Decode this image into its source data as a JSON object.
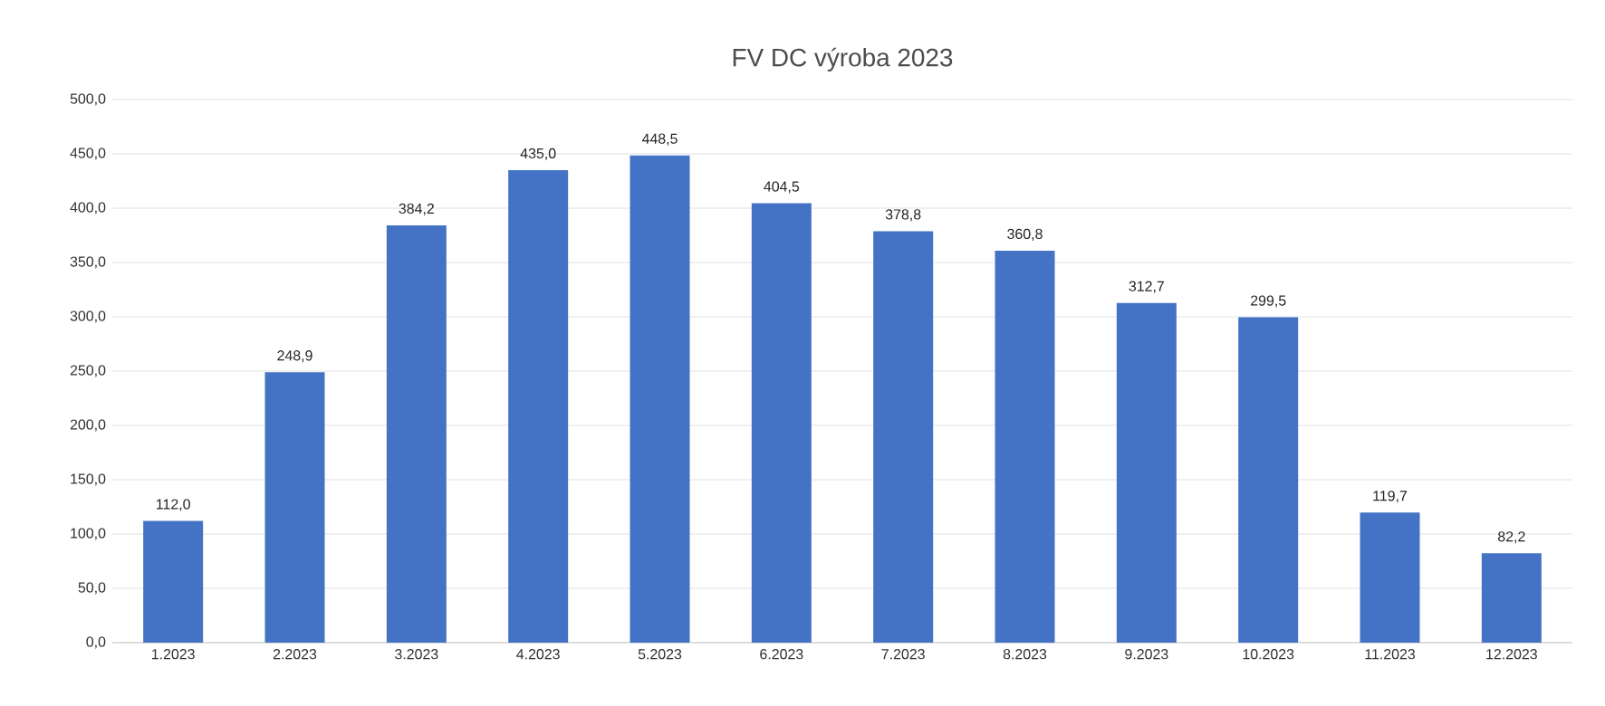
{
  "chart_data": {
    "type": "bar",
    "title": "FV DC výroba 2023",
    "categories": [
      "1.2023",
      "2.2023",
      "3.2023",
      "4.2023",
      "5.2023",
      "6.2023",
      "7.2023",
      "8.2023",
      "9.2023",
      "10.2023",
      "11.2023",
      "12.2023"
    ],
    "values": [
      112.0,
      248.9,
      384.2,
      435.0,
      448.5,
      404.5,
      378.8,
      360.8,
      312.7,
      299.5,
      119.7,
      82.2
    ],
    "value_labels": [
      "112,0",
      "248,9",
      "384,2",
      "435,0",
      "448,5",
      "404,5",
      "378,8",
      "360,8",
      "312,7",
      "299,5",
      "119,7",
      "82,2"
    ],
    "color": "#4472c4",
    "ylim": [
      0,
      500
    ],
    "yticks": [
      {
        "value": 0,
        "label": "0,0"
      },
      {
        "value": 50,
        "label": "50,0"
      },
      {
        "value": 100,
        "label": "100,0"
      },
      {
        "value": 150,
        "label": "150,0"
      },
      {
        "value": 200,
        "label": "200,0"
      },
      {
        "value": 250,
        "label": "250,0"
      },
      {
        "value": 300,
        "label": "300,0"
      },
      {
        "value": 350,
        "label": "350,0"
      },
      {
        "value": 400,
        "label": "400,0"
      },
      {
        "value": 450,
        "label": "450,0"
      },
      {
        "value": 500,
        "label": "500,0"
      }
    ],
    "grid": "y"
  }
}
